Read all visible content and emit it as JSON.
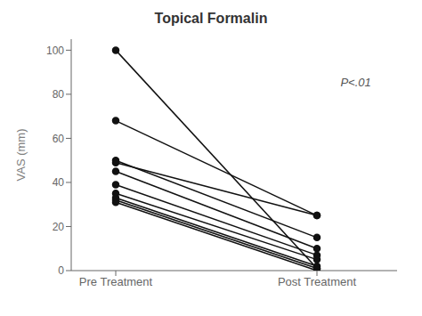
{
  "chart_data": {
    "type": "line",
    "title": "Topical Formalin",
    "categories": [
      "Pre Treatment",
      "Post Treatment"
    ],
    "y_label": "VAS (mm)",
    "ylim": [
      0,
      105
    ],
    "yticks": [
      0,
      20,
      40,
      60,
      80,
      100
    ],
    "grid": false,
    "annotations": [
      {
        "text": "P<.01",
        "color": "#555555"
      }
    ],
    "series": [
      {
        "values": [
          100,
          1
        ],
        "color": "#111111",
        "marker": "circle"
      },
      {
        "values": [
          68,
          25
        ],
        "color": "#111111",
        "marker": "circle"
      },
      {
        "values": [
          50,
          15
        ],
        "color": "#111111",
        "marker": "circle"
      },
      {
        "values": [
          49,
          25
        ],
        "color": "#111111",
        "marker": "circle"
      },
      {
        "values": [
          45,
          10
        ],
        "color": "#111111",
        "marker": "circle"
      },
      {
        "values": [
          39,
          7
        ],
        "color": "#111111",
        "marker": "circle"
      },
      {
        "values": [
          35,
          5
        ],
        "color": "#111111",
        "marker": "circle"
      },
      {
        "values": [
          33,
          2
        ],
        "color": "#111111",
        "marker": "circle"
      },
      {
        "values": [
          32,
          1
        ],
        "color": "#111111",
        "marker": "circle"
      },
      {
        "values": [
          31,
          0
        ],
        "color": "#111111",
        "marker": "circle"
      }
    ]
  }
}
